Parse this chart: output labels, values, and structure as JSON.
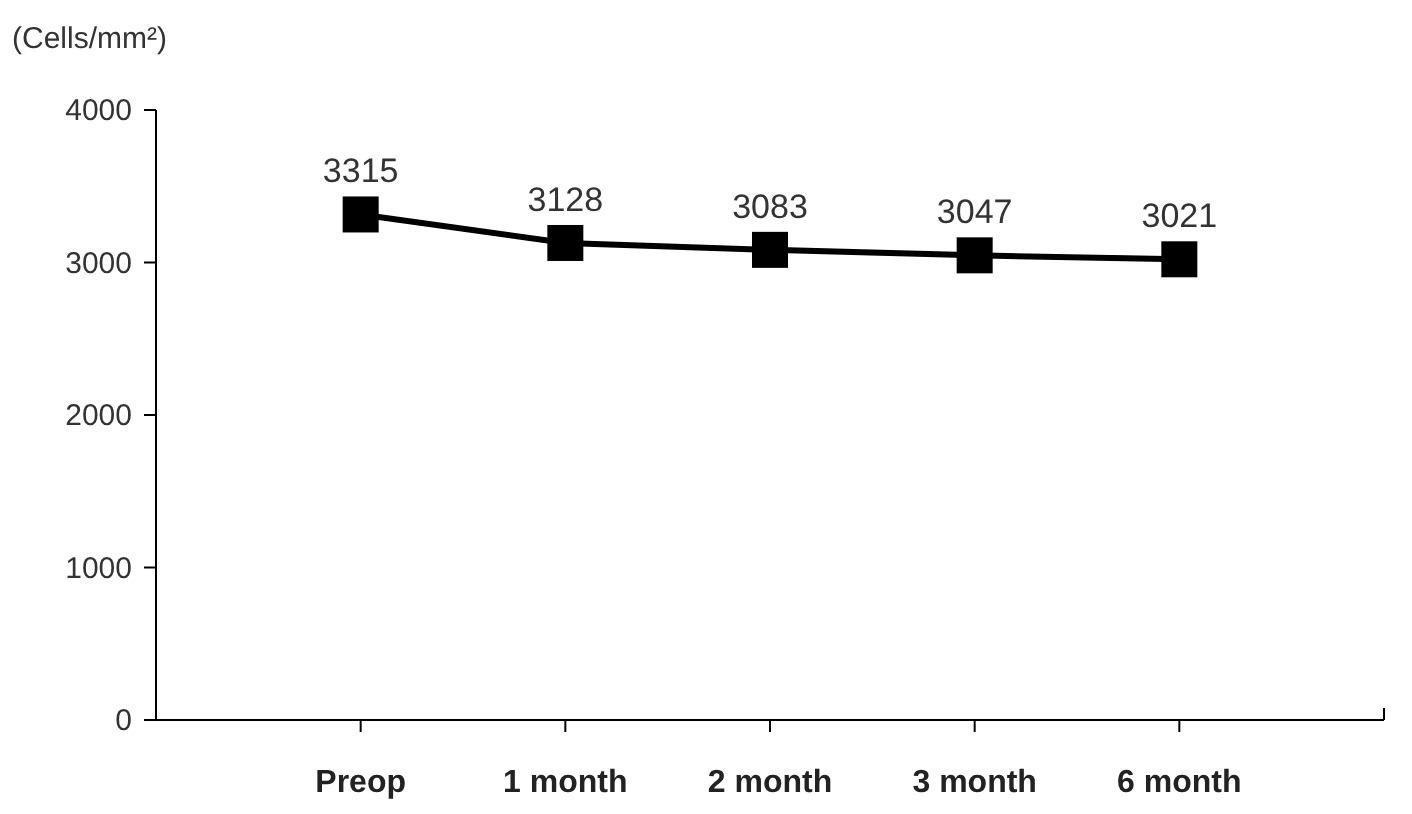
{
  "chart_data": {
    "type": "line",
    "ylabel": "(Cells/mm²)",
    "categories": [
      "Preop",
      "1 month",
      "2 month",
      "3 month",
      "6 month"
    ],
    "series": [
      {
        "color": "#000000",
        "values": [
          3315,
          3128,
          3083,
          3047,
          3021
        ]
      }
    ],
    "ylim": [
      0,
      4000
    ],
    "yticks": [
      0,
      1000,
      2000,
      3000,
      4000
    ],
    "marker": "square",
    "line_style": "solid",
    "data_labels": true,
    "grid": false
  }
}
